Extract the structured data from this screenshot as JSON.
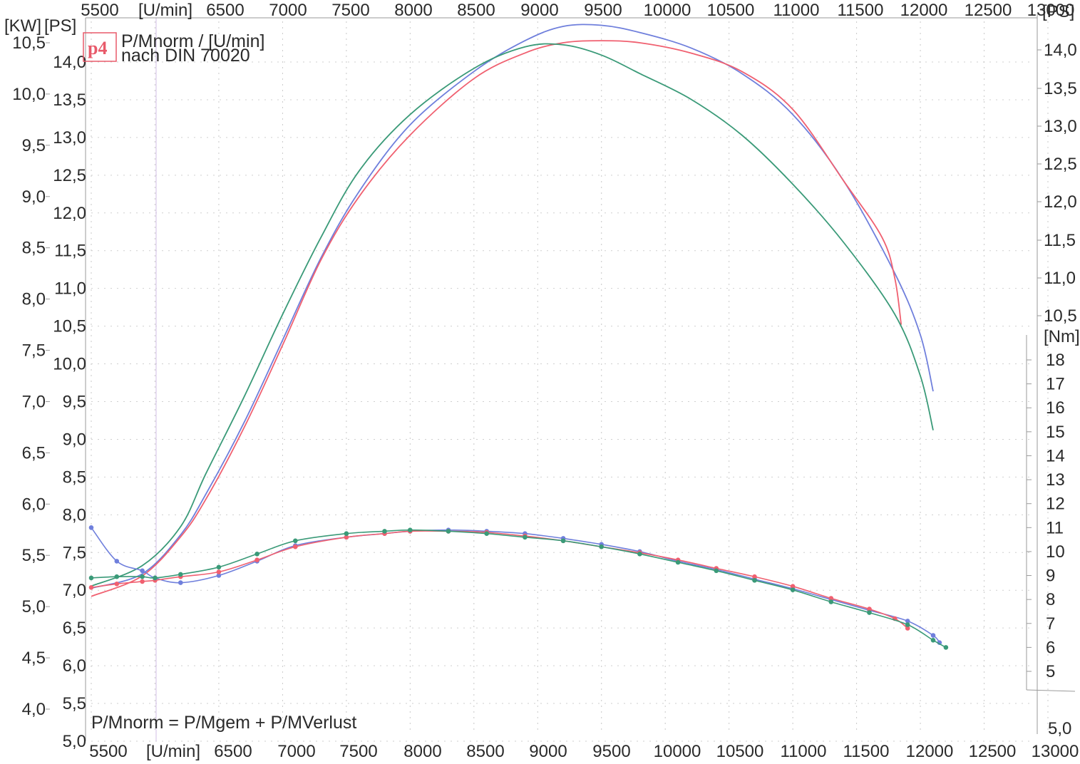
{
  "chart_data": {
    "type": "line",
    "title": "P/Mnorm / [U/min]",
    "subtitle": "nach DIN 70020",
    "formula": "P/Mnorm = P/Mgem + P/MVerlust",
    "logo_text": "p4",
    "xlabel": "[U/min]",
    "xlim": [
      5500,
      13000
    ],
    "x_ticks_bottom": [
      "5500",
      "[U/min]",
      "6500",
      "7000",
      "7500",
      "8000",
      "8500",
      "9000",
      "9500",
      "10000",
      "10500",
      "11000",
      "11500",
      "12000",
      "12500",
      "13000"
    ],
    "x_ticks_top": [
      "5500",
      "[U/min]",
      "6500",
      "7000",
      "7500",
      "8000",
      "8500",
      "9000",
      "9500",
      "10000",
      "10500",
      "11000",
      "11500",
      "12000",
      "12500",
      "13000"
    ],
    "kw_axis": {
      "unit": "[KW]",
      "lim": [
        4.0,
        10.5
      ],
      "ticks": [
        "10,5",
        "10,0",
        "9,5",
        "9,0",
        "8,5",
        "8,0",
        "7,5",
        "7,0",
        "6,5",
        "6,0",
        "5,5",
        "5,0",
        "4,5",
        "4,0"
      ]
    },
    "ps_axis_left": {
      "unit": "[PS]",
      "lim": [
        5.0,
        14.0
      ],
      "ticks": [
        "14,0",
        "13,5",
        "13,0",
        "12,5",
        "12,0",
        "11,5",
        "11,0",
        "10,5",
        "10,0",
        "9,5",
        "9,0",
        "8,5",
        "8,0",
        "7,5",
        "7,0",
        "6,5",
        "6,0",
        "5,5",
        "5,0"
      ]
    },
    "ps_axis_right": {
      "unit": "[PS]",
      "ticks": [
        "14,0",
        "13,5",
        "13,0",
        "12,5",
        "12,0",
        "11,5",
        "11,0",
        "10,5"
      ],
      "bottom_label": "5,0"
    },
    "nm_axis": {
      "unit": "[Nm]",
      "lim": [
        5,
        18
      ],
      "ticks": [
        "18",
        "17",
        "16",
        "15",
        "14",
        "13",
        "12",
        "11",
        "10",
        "9",
        "8",
        "7",
        "6",
        "5"
      ]
    },
    "power_series": [
      {
        "color": "#6f7fdc",
        "x": [
          5500,
          5900,
          6200,
          6400,
          6700,
          7000,
          7300,
          7600,
          8000,
          8500,
          8900,
          9200,
          9500,
          9800,
          10200,
          10600,
          11000,
          11400,
          11800,
          12000,
          12100
        ],
        "y": [
          5.18,
          5.32,
          5.7,
          6.1,
          6.8,
          7.6,
          8.4,
          9.05,
          9.7,
          10.22,
          10.52,
          10.66,
          10.67,
          10.6,
          10.45,
          10.2,
          9.8,
          9.15,
          8.25,
          7.65,
          7.1
        ]
      },
      {
        "color": "#f06070",
        "x": [
          5500,
          5900,
          6200,
          6400,
          6700,
          7000,
          7300,
          7600,
          8000,
          8500,
          8900,
          9200,
          9500,
          9800,
          10200,
          10600,
          11000,
          11400,
          11700,
          11800,
          11850
        ],
        "y": [
          5.1,
          5.3,
          5.68,
          6.05,
          6.75,
          7.55,
          8.38,
          9.0,
          9.6,
          10.15,
          10.4,
          10.5,
          10.52,
          10.5,
          10.4,
          10.22,
          9.85,
          9.15,
          8.6,
          8.2,
          7.75
        ]
      },
      {
        "color": "#3a9a78",
        "x": [
          5500,
          5900,
          6200,
          6400,
          6700,
          7000,
          7300,
          7600,
          8000,
          8500,
          8900,
          9200,
          9500,
          9800,
          10200,
          10600,
          11000,
          11400,
          11800,
          12000,
          12100
        ],
        "y": [
          5.2,
          5.4,
          5.78,
          6.3,
          7.05,
          7.85,
          8.6,
          9.25,
          9.8,
          10.25,
          10.46,
          10.48,
          10.38,
          10.2,
          9.95,
          9.6,
          9.12,
          8.55,
          7.85,
          7.25,
          6.72
        ]
      }
    ],
    "torque_series": [
      {
        "color": "#6f7fdc",
        "x": [
          5500,
          5700,
          5900,
          6000,
          6200,
          6500,
          6800,
          7100,
          7500,
          7800,
          8000,
          8300,
          8600,
          8900,
          9200,
          9500,
          9800,
          10100,
          10400,
          10700,
          11000,
          11300,
          11600,
          11900,
          12100,
          12150
        ],
        "y": [
          11.0,
          9.6,
          9.2,
          8.9,
          8.7,
          9.0,
          9.6,
          10.25,
          10.6,
          10.75,
          10.85,
          10.9,
          10.85,
          10.75,
          10.55,
          10.3,
          10.0,
          9.6,
          9.25,
          8.85,
          8.45,
          8.0,
          7.55,
          7.1,
          6.5,
          6.2
        ]
      },
      {
        "color": "#f06070",
        "x": [
          5500,
          5700,
          5900,
          6000,
          6200,
          6500,
          6800,
          7100,
          7500,
          7800,
          8000,
          8300,
          8600,
          8900,
          9200,
          9500,
          9800,
          10100,
          10400,
          10700,
          11000,
          11300,
          11600,
          11800,
          11900
        ],
        "y": [
          8.5,
          8.65,
          8.75,
          8.8,
          8.95,
          9.15,
          9.65,
          10.2,
          10.6,
          10.75,
          10.85,
          10.85,
          10.8,
          10.65,
          10.45,
          10.2,
          9.95,
          9.65,
          9.3,
          8.95,
          8.55,
          8.05,
          7.6,
          7.2,
          6.8
        ]
      },
      {
        "color": "#3a9a78",
        "x": [
          5500,
          5700,
          5900,
          6000,
          6200,
          6500,
          6800,
          7100,
          7500,
          7800,
          8000,
          8300,
          8600,
          8900,
          9200,
          9500,
          9800,
          10100,
          10400,
          10700,
          11000,
          11300,
          11600,
          11900,
          12100,
          12200
        ],
        "y": [
          8.9,
          8.95,
          8.95,
          8.9,
          9.05,
          9.35,
          9.9,
          10.45,
          10.75,
          10.85,
          10.9,
          10.85,
          10.75,
          10.6,
          10.45,
          10.2,
          9.9,
          9.55,
          9.2,
          8.8,
          8.4,
          7.9,
          7.45,
          6.95,
          6.3,
          6.0
        ]
      }
    ]
  }
}
